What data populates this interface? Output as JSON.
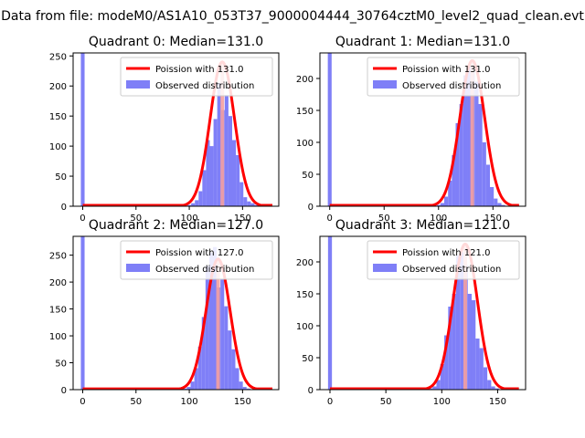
{
  "figure_title": "Data from file: modeM0/AS1A10_053T37_9000004444_30764cztM0_level2_quad_clean.evt",
  "legend": {
    "poisson_prefix": "Poission with",
    "observed": "Observed distribution"
  },
  "colors": {
    "poisson": "#ff0000",
    "observed": "#7f7ff7",
    "median_line": "#f4a0a0"
  },
  "chart_data": [
    {
      "type": "bar",
      "title": "Quadrant 0: Median=131.0",
      "median": 131.0,
      "xlim": [
        -9,
        184
      ],
      "ylim": [
        0,
        255
      ],
      "xticks": [
        0,
        50,
        100,
        150
      ],
      "yticks": [
        0,
        50,
        100,
        150,
        200,
        250
      ],
      "bin_width": 3.5,
      "spike": {
        "x": 0,
        "value": 255
      },
      "bins": [
        {
          "x": 100,
          "v": 2
        },
        {
          "x": 103.5,
          "v": 5
        },
        {
          "x": 107,
          "v": 10
        },
        {
          "x": 110.5,
          "v": 25
        },
        {
          "x": 114,
          "v": 60
        },
        {
          "x": 117.5,
          "v": 110
        },
        {
          "x": 121,
          "v": 100
        },
        {
          "x": 124.5,
          "v": 145
        },
        {
          "x": 128,
          "v": 205
        },
        {
          "x": 131.5,
          "v": 160
        },
        {
          "x": 135,
          "v": 185
        },
        {
          "x": 138.5,
          "v": 150
        },
        {
          "x": 142,
          "v": 110
        },
        {
          "x": 145.5,
          "v": 85
        },
        {
          "x": 149,
          "v": 40
        },
        {
          "x": 152.5,
          "v": 15
        },
        {
          "x": 156,
          "v": 8
        },
        {
          "x": 159.5,
          "v": 5
        },
        {
          "x": 163,
          "v": 2
        }
      ],
      "poisson_peak": 240
    },
    {
      "type": "bar",
      "title": "Quadrant 1: Median=131.0",
      "median": 131.0,
      "xlim": [
        -9,
        180
      ],
      "ylim": [
        0,
        240
      ],
      "xticks": [
        0,
        50,
        100,
        150
      ],
      "yticks": [
        0,
        50,
        100,
        150,
        200
      ],
      "bin_width": 3.5,
      "spike": {
        "x": 0,
        "value": 240
      },
      "bins": [
        {
          "x": 100,
          "v": 2
        },
        {
          "x": 103.5,
          "v": 5
        },
        {
          "x": 107,
          "v": 15
        },
        {
          "x": 110.5,
          "v": 40
        },
        {
          "x": 114,
          "v": 80
        },
        {
          "x": 117.5,
          "v": 130
        },
        {
          "x": 121,
          "v": 160
        },
        {
          "x": 124.5,
          "v": 205
        },
        {
          "x": 128,
          "v": 220
        },
        {
          "x": 131.5,
          "v": 215
        },
        {
          "x": 135,
          "v": 195
        },
        {
          "x": 138.5,
          "v": 160
        },
        {
          "x": 142,
          "v": 100
        },
        {
          "x": 145.5,
          "v": 65
        },
        {
          "x": 149,
          "v": 30
        },
        {
          "x": 152.5,
          "v": 12
        },
        {
          "x": 156,
          "v": 5
        },
        {
          "x": 159.5,
          "v": 2
        }
      ],
      "poisson_peak": 228
    },
    {
      "type": "bar",
      "title": "Quadrant 2: Median=127.0",
      "median": 127.0,
      "xlim": [
        -9,
        184
      ],
      "ylim": [
        0,
        285
      ],
      "xticks": [
        0,
        50,
        100,
        150
      ],
      "yticks": [
        0,
        50,
        100,
        150,
        200,
        250
      ],
      "bin_width": 3.5,
      "spike": {
        "x": 0,
        "value": 285
      },
      "bins": [
        {
          "x": 96,
          "v": 2
        },
        {
          "x": 99.5,
          "v": 5
        },
        {
          "x": 103,
          "v": 15
        },
        {
          "x": 106.5,
          "v": 40
        },
        {
          "x": 110,
          "v": 80
        },
        {
          "x": 113.5,
          "v": 135
        },
        {
          "x": 117,
          "v": 230
        },
        {
          "x": 120.5,
          "v": 255
        },
        {
          "x": 124,
          "v": 265
        },
        {
          "x": 127.5,
          "v": 190
        },
        {
          "x": 131,
          "v": 205
        },
        {
          "x": 134.5,
          "v": 155
        },
        {
          "x": 138,
          "v": 110
        },
        {
          "x": 141.5,
          "v": 75
        },
        {
          "x": 145,
          "v": 40
        },
        {
          "x": 148.5,
          "v": 15
        },
        {
          "x": 152,
          "v": 5
        },
        {
          "x": 155.5,
          "v": 2
        }
      ],
      "poisson_peak": 243
    },
    {
      "type": "bar",
      "title": "Quadrant 3: Median=121.0",
      "median": 121.0,
      "xlim": [
        -9,
        175
      ],
      "ylim": [
        0,
        240
      ],
      "xticks": [
        0,
        50,
        100,
        150
      ],
      "yticks": [
        0,
        50,
        100,
        150,
        200
      ],
      "bin_width": 3.5,
      "spike": {
        "x": 0,
        "value": 240
      },
      "bins": [
        {
          "x": 90,
          "v": 2
        },
        {
          "x": 93.5,
          "v": 5
        },
        {
          "x": 97,
          "v": 15
        },
        {
          "x": 100.5,
          "v": 40
        },
        {
          "x": 104,
          "v": 85
        },
        {
          "x": 107.5,
          "v": 130
        },
        {
          "x": 111,
          "v": 150
        },
        {
          "x": 114.5,
          "v": 210
        },
        {
          "x": 118,
          "v": 215
        },
        {
          "x": 121.5,
          "v": 195
        },
        {
          "x": 125,
          "v": 150
        },
        {
          "x": 128.5,
          "v": 140
        },
        {
          "x": 132,
          "v": 80
        },
        {
          "x": 135.5,
          "v": 65
        },
        {
          "x": 139,
          "v": 35
        },
        {
          "x": 142.5,
          "v": 15
        },
        {
          "x": 146,
          "v": 5
        },
        {
          "x": 149.5,
          "v": 2
        }
      ],
      "poisson_peak": 228
    }
  ]
}
